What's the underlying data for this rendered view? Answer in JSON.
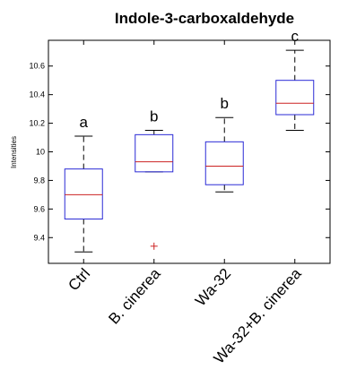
{
  "chart_data": {
    "type": "box",
    "title": "Indole-3-carboxaldehyde",
    "xlabel": "",
    "ylabel": "Intensities",
    "ylim": [
      9.22,
      10.78
    ],
    "yticks": [
      "9.4",
      "9.6",
      "9.8",
      "10",
      "10.2",
      "10.4",
      "10.6"
    ],
    "categories": [
      "Ctrl",
      "B. cinerea",
      "Wa-32",
      "Wa-32+B. cinerea"
    ],
    "boxes": [
      {
        "category": "Ctrl",
        "whisker_low": 9.3,
        "q1": 9.53,
        "median": 9.7,
        "q3": 9.88,
        "whisker_high": 10.11,
        "outliers": [],
        "significance": "a"
      },
      {
        "category": "B. cinerea",
        "whisker_low": 9.86,
        "q1": 9.86,
        "median": 9.93,
        "q3": 10.12,
        "whisker_high": 10.15,
        "outliers": [
          9.34
        ],
        "significance": "b"
      },
      {
        "category": "Wa-32",
        "whisker_low": 9.72,
        "q1": 9.77,
        "median": 9.9,
        "q3": 10.07,
        "whisker_high": 10.24,
        "outliers": [],
        "significance": "b"
      },
      {
        "category": "Wa-32+B. cinerea",
        "whisker_low": 10.15,
        "q1": 10.26,
        "median": 10.34,
        "q3": 10.5,
        "whisker_high": 10.71,
        "outliers": [],
        "significance": "c"
      }
    ],
    "colors": {
      "box": "#2a2ad6",
      "median": "#cc2222",
      "outlier": "#cc2222",
      "whisker": "#000000"
    },
    "grid": false
  }
}
